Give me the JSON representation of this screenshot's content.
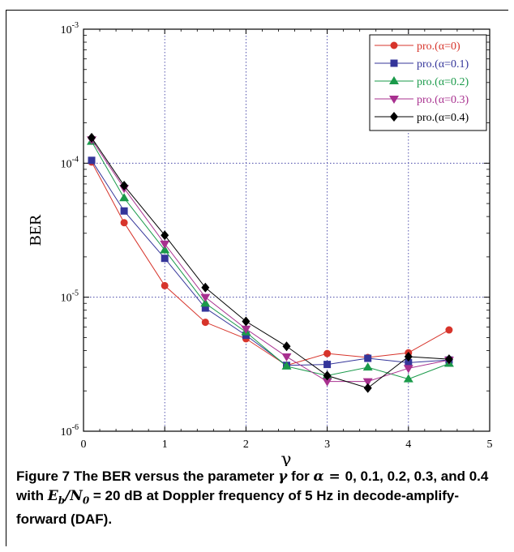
{
  "chart_data": {
    "type": "line",
    "ylabel": "BER",
    "xlabel": "γ",
    "xlim": [
      0,
      5
    ],
    "ylim": [
      1e-06,
      0.001
    ],
    "yscale": "log",
    "grid": true,
    "legend_position": "top-right",
    "x_ticks": [
      "0",
      "1",
      "2",
      "3",
      "4",
      "5"
    ],
    "y_ticks": [
      {
        "base": "10",
        "exp": "-6"
      },
      {
        "base": "10",
        "exp": "-5"
      },
      {
        "base": "10",
        "exp": "-4"
      },
      {
        "base": "10",
        "exp": "-3"
      }
    ],
    "x": [
      0.1,
      0.5,
      1.0,
      1.5,
      2.0,
      2.5,
      3.0,
      3.5,
      4.0,
      4.5
    ],
    "series": [
      {
        "name": "pro.(α=0)",
        "color": "#d7342b",
        "marker": "circle",
        "values": [
          0.000102,
          3.6e-05,
          1.22e-05,
          6.5e-06,
          4.9e-06,
          3.1e-06,
          3.8e-06,
          3.55e-06,
          3.85e-06,
          5.7e-06
        ]
      },
      {
        "name": "pro.(α=0.1)",
        "color": "#34359a",
        "marker": "square",
        "values": [
          0.000105,
          4.4e-05,
          1.95e-05,
          8.3e-06,
          5.2e-06,
          3.1e-06,
          3.15e-06,
          3.5e-06,
          3.25e-06,
          3.4e-06
        ]
      },
      {
        "name": "pro.(α=0.2)",
        "color": "#1a9a4a",
        "marker": "triangle-up",
        "values": [
          0.000145,
          5.5e-05,
          2.25e-05,
          9e-06,
          5.5e-06,
          3.05e-06,
          2.6e-06,
          3e-06,
          2.45e-06,
          3.2e-06
        ]
      },
      {
        "name": "pro.(α=0.3)",
        "color": "#a8308f",
        "marker": "triangle-down",
        "values": [
          0.00015,
          6.5e-05,
          2.5e-05,
          1e-05,
          5.8e-06,
          3.6e-06,
          2.35e-06,
          2.35e-06,
          2.95e-06,
          3.4e-06
        ]
      },
      {
        "name": "pro.(α=0.4)",
        "color": "#000000",
        "marker": "diamond",
        "values": [
          0.000155,
          6.8e-05,
          2.9e-05,
          1.18e-05,
          6.6e-06,
          4.3e-06,
          2.6e-06,
          2.1e-06,
          3.6e-06,
          3.45e-06
        ]
      }
    ]
  },
  "caption": {
    "figure_label": "Figure 7",
    "text_part1": " The BER versus the parameter ",
    "gamma_symbol": "γ",
    "text_part2": " for ",
    "alpha_eq": "α = ",
    "text_part3": "0, 0.1, 0.2, 0.3, and 0.4 with ",
    "eb": "E",
    "eb_sub": "b",
    "slash_n": "/N",
    "n_sub": "0",
    "eq20": " = 20",
    "text_part4": " dB at Doppler frequency of 5 Hz in decode-amplify-forward (DAF)."
  }
}
